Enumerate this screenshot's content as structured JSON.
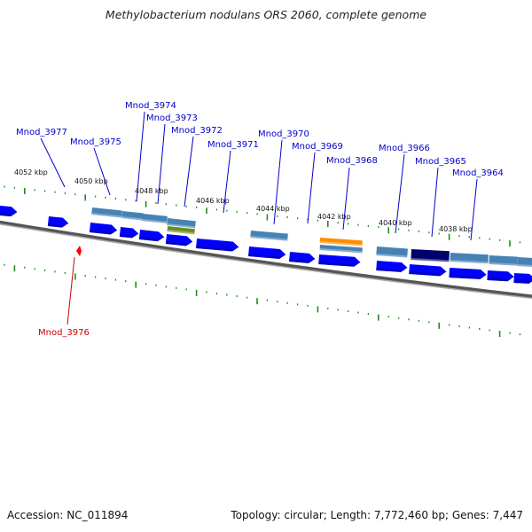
{
  "title": "Methylobacterium nodulans ORS 2060, complete genome",
  "footer": {
    "accession": "Accession: NC_011894",
    "summary": "Topology: circular; Length: 7,772,460 bp; Genes: 7,447"
  },
  "colors": {
    "backbone": "#7a7a7a",
    "tick": "#228b22",
    "label_normal": "#0000cc",
    "label_highlight": "#cc0000",
    "cds_forward": "#0000ff",
    "feature_steel": "#4682b4",
    "feature_olive": "#6b8e23",
    "feature_orange": "#ff8c00",
    "feature_navy": "#00006b",
    "highlight_marker": "#ff0000"
  },
  "scale_labels": [
    "4052 kbp",
    "4050 kbp",
    "4048 kbp",
    "4046 kbp",
    "4044 kbp",
    "4042 kbp",
    "4040 kbp",
    "4038 kbp"
  ],
  "gene_labels": [
    "Mnod_3977",
    "Mnod_3975",
    "Mnod_3974",
    "Mnod_3973",
    "Mnod_3972",
    "Mnod_3971",
    "Mnod_3970",
    "Mnod_3969",
    "Mnod_3968",
    "Mnod_3966",
    "Mnod_3965",
    "Mnod_3964",
    "Mnod_3976"
  ],
  "highlighted_gene": "Mnod_3976"
}
